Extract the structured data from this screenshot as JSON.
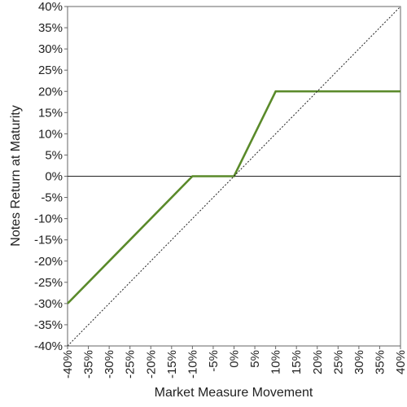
{
  "chart_data": {
    "type": "line",
    "title": "",
    "xlabel": "Market Measure Movement",
    "ylabel": "Notes Return at Maturity",
    "xlim": [
      -40,
      40
    ],
    "ylim": [
      -40,
      40
    ],
    "x_ticks": [
      "-40%",
      "-35%",
      "-30%",
      "-25%",
      "-20%",
      "-15%",
      "-10%",
      "-5%",
      "0%",
      "5%",
      "10%",
      "15%",
      "20%",
      "25%",
      "30%",
      "35%",
      "40%"
    ],
    "y_ticks": [
      "40%",
      "35%",
      "30%",
      "25%",
      "20%",
      "15%",
      "10%",
      "5%",
      "0%",
      "-5%",
      "-10%",
      "-15%",
      "-20%",
      "-25%",
      "-30%",
      "-35%",
      "-40%"
    ],
    "grid": false,
    "series": [
      {
        "style": "solid",
        "color": "#5a8a2a",
        "points": [
          [
            -40,
            -30
          ],
          [
            -10,
            0
          ],
          [
            0,
            0
          ],
          [
            10,
            20
          ],
          [
            40,
            20
          ]
        ]
      },
      {
        "style": "dotted",
        "color": "#222222",
        "points": [
          [
            -40,
            -40
          ],
          [
            40,
            40
          ]
        ]
      }
    ],
    "reference_lines": [
      {
        "axis": "y",
        "value": 0,
        "color": "#222222"
      }
    ]
  }
}
